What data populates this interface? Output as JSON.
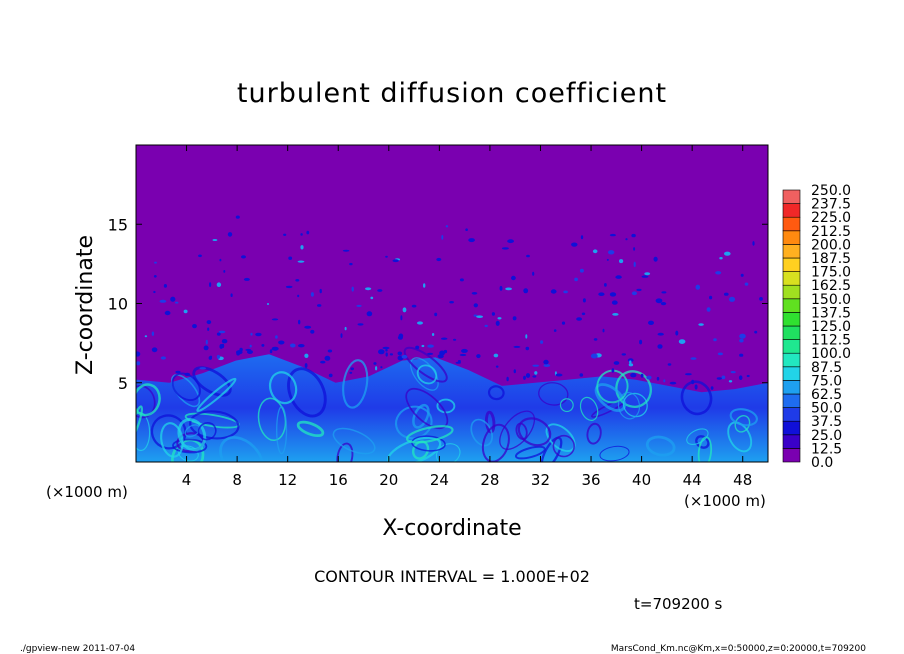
{
  "chart_data": {
    "type": "heatmap",
    "title": "turbulent diffusion coefficient",
    "xlabel": "X-coordinate",
    "ylabel": "Z-coordinate",
    "x_unit_left": "(×1000 m)",
    "x_unit_right": "(×1000 m)",
    "y_unit": "(×1000 m)",
    "xlim": [
      0,
      50
    ],
    "ylim": [
      0,
      20
    ],
    "x_ticks": [
      4,
      8,
      12,
      16,
      20,
      24,
      28,
      32,
      36,
      40,
      44,
      48
    ],
    "x_tick_labels": [
      "4",
      "8",
      "12",
      "16",
      "20",
      "24",
      "28",
      "32",
      "36",
      "40",
      "44",
      "48"
    ],
    "y_ticks": [
      5,
      10,
      15
    ],
    "y_tick_labels": [
      "5",
      "10",
      "15"
    ],
    "colorbar": {
      "levels": [
        0.0,
        12.5,
        25.0,
        37.5,
        50.0,
        62.5,
        75.0,
        87.5,
        100.0,
        112.5,
        125.0,
        137.5,
        150.0,
        162.5,
        175.0,
        187.5,
        200.0,
        212.5,
        225.0,
        237.5,
        250.0
      ],
      "labels": [
        "0.0",
        "12.5",
        "25.0",
        "37.5",
        "50.0",
        "62.5",
        "75.0",
        "87.5",
        "100.0",
        "112.5",
        "125.0",
        "137.5",
        "150.0",
        "162.5",
        "175.0",
        "187.5",
        "200.0",
        "212.5",
        "225.0",
        "237.5",
        "250.0"
      ],
      "colors": [
        "#7a00b0",
        "#3a00c8",
        "#1010d8",
        "#1f3be8",
        "#1e6cf0",
        "#1ea0f0",
        "#22d4e8",
        "#22e8c0",
        "#1fe890",
        "#20e060",
        "#30e030",
        "#60e020",
        "#a0e020",
        "#d8e020",
        "#ffd020",
        "#ffb020",
        "#ff8a10",
        "#ff5a10",
        "#f02828",
        "#f06060"
      ]
    },
    "background_level": 0.0,
    "boundary_layer_top_km": [
      5.2,
      5.0,
      5.6,
      6.4,
      6.8,
      6.0,
      5.0,
      5.4,
      6.4,
      6.6,
      5.8,
      4.8,
      5.0,
      5.2,
      5.4,
      5.2,
      4.8,
      4.4,
      4.6,
      5.0
    ]
  },
  "annotations": {
    "contour_interval": "CONTOUR INTERVAL = 1.000E+02",
    "time": "t=709200 s",
    "footer_left": "./gpview-new   2011-07-04",
    "footer_right": "MarsCond_Km.nc@Km,x=0:50000,z=0:20000,t=709200"
  }
}
